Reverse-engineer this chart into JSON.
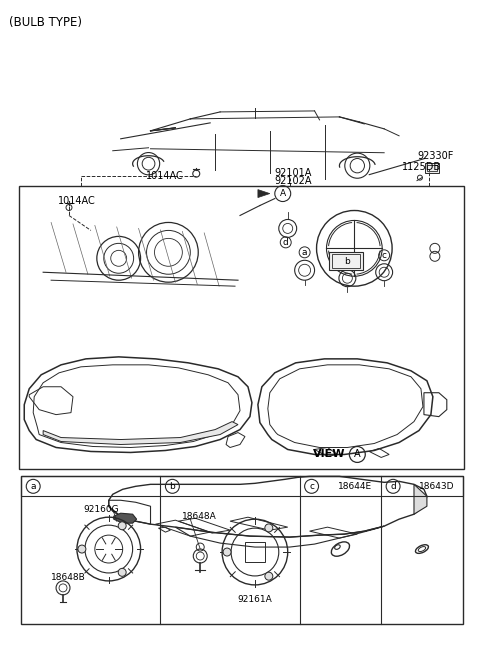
{
  "bg_color": "#ffffff",
  "lc": "#2a2a2a",
  "tc": "#000000",
  "title": "(BULB TYPE)",
  "label_1014AC_top": "1014AC",
  "label_92101A": "92101A",
  "label_92102A": "92102A",
  "label_92330F": "92330F",
  "label_1125DB": "1125DB",
  "label_1014AC_box": "1014AC",
  "label_VIEW": "VIEW",
  "label_A": "A",
  "table_headers": [
    "a",
    "b",
    "c",
    "d"
  ],
  "table_parts": [
    "",
    "",
    "18644E",
    "18643D"
  ],
  "cell_labels_a": [
    "92160G",
    "18648B"
  ],
  "cell_labels_b": [
    "18648A",
    "92161A"
  ],
  "fig_w": 4.8,
  "fig_h": 6.55,
  "dpi": 100
}
